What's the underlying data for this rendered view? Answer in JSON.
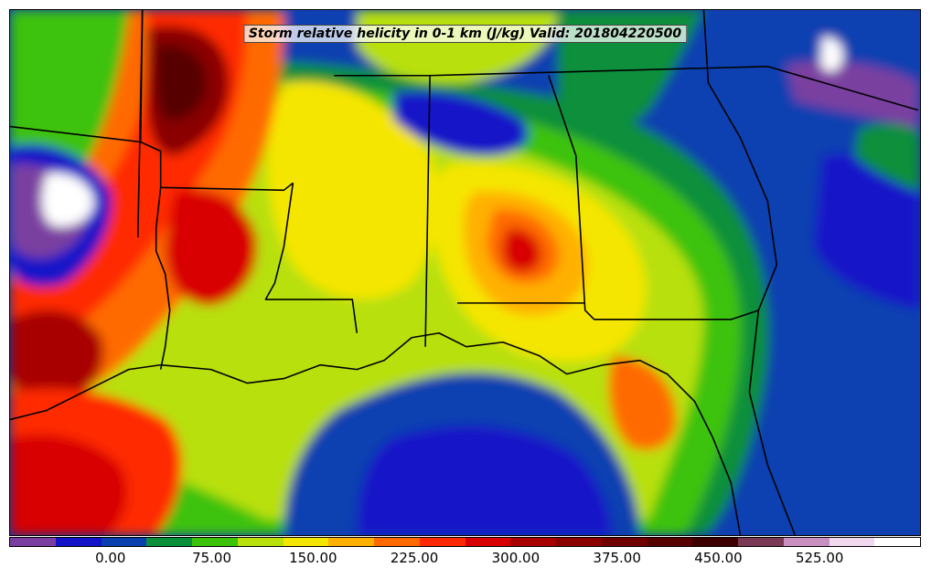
{
  "title": "Storm relative helicity in 0-1 km (J/kg) Valid: 201804220500",
  "colorbar": {
    "colors": [
      "#7a3fa0",
      "#1313c8",
      "#0a3fb0",
      "#0a8f3a",
      "#3dc20a",
      "#b8e00a",
      "#f5e600",
      "#ffb000",
      "#ff6a00",
      "#ff2a00",
      "#d80000",
      "#a80000",
      "#8a0000",
      "#700000",
      "#560000",
      "#3d0000",
      "#7a3a55",
      "#c890c0",
      "#f0d8ef",
      "#ffffff"
    ],
    "ticks": [
      {
        "label": "0.00",
        "value": 0
      },
      {
        "label": "75.00",
        "value": 75
      },
      {
        "label": "150.00",
        "value": 150
      },
      {
        "label": "225.00",
        "value": 225
      },
      {
        "label": "300.00",
        "value": 300
      },
      {
        "label": "375.00",
        "value": 375
      },
      {
        "label": "450.00",
        "value": 450
      },
      {
        "label": "525.00",
        "value": 525
      }
    ],
    "range": [
      -75,
      600
    ]
  }
}
